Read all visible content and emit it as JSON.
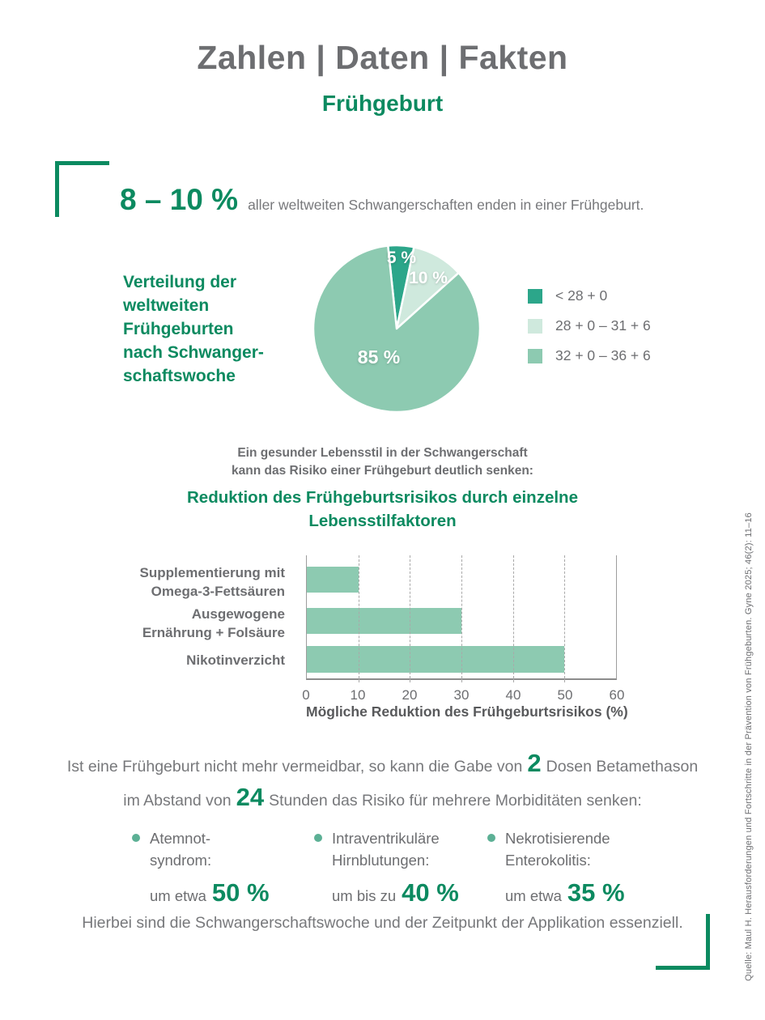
{
  "header": {
    "title": "Zahlen | Daten | Fakten",
    "subtitle": "Frühgeburt"
  },
  "colors": {
    "accent_green": "#0c8a60",
    "title_gray": "#6d6e71",
    "body_gray": "#77787b",
    "pie_dark": "#2ca68a",
    "pie_light": "#cfe9dd",
    "pie_medium": "#8dcab1",
    "bullet_green": "#5cb095"
  },
  "stat_intro": {
    "value": "8 – 10 %",
    "text": "aller weltweiten Schwangerschaften enden in einer Frühgeburt."
  },
  "chart_data": [
    {
      "type": "pie",
      "title": "Verteilung der weltweiten Frühgeburten nach Schwangerschaftswoche",
      "title_lines": [
        "Verteilung der",
        "weltweiten",
        "Frühgeburten",
        "nach Schwanger-",
        "schaftswoche"
      ],
      "start_angle_deg": -6,
      "slices": [
        {
          "label": "< 28 + 0",
          "value": 5,
          "display": "5 %",
          "color": "#2ca68a"
        },
        {
          "label": "28 + 0 – 31 + 6",
          "value": 10,
          "display": "10 %",
          "color": "#cfe9dd"
        },
        {
          "label": "32 + 0 – 36 + 6",
          "value": 85,
          "display": "85 %",
          "color": "#8dcab1"
        }
      ],
      "legend_position": "right"
    },
    {
      "type": "bar",
      "orientation": "horizontal",
      "title": "Reduktion des Frühgeburtsrisikos durch einzelne Lebensstilfaktoren",
      "categories": [
        "Supplementierung mit Omega-3-Fettsäuren",
        "Ausgewogene Ernährung + Folsäure",
        "Nikotinverzicht"
      ],
      "cat_lines": [
        [
          "Supplementierung mit",
          "Omega-3-Fettsäuren"
        ],
        [
          "Ausgewogene",
          "Ernährung + Folsäure"
        ],
        [
          "Nikotinverzicht",
          ""
        ]
      ],
      "values": [
        10,
        30,
        50
      ],
      "xlabel": "Mögliche Reduktion des Frühgeburtsrisikos (%)",
      "xlim": [
        0,
        60
      ],
      "xticks": [
        0,
        10,
        20,
        30,
        40,
        50,
        60
      ],
      "grid": "dashed-vertical",
      "bar_color": "#8dcab1"
    }
  ],
  "lifestyle_intro": {
    "line1": "Ein gesunder Lebensstil in der Schwangerschaft",
    "line2": "kann das Risiko einer Frühgeburt deutlich senken:",
    "heading_line1": "Reduktion des Frühgeburtsrisikos durch einzelne",
    "heading_line2": "Lebensstilfaktoren"
  },
  "betamethason": {
    "part1": "Ist eine Frühgeburt nicht mehr vermeidbar, so kann die Gabe von",
    "big1": "2",
    "part2": "Dosen Betamethason",
    "part3": "im Abstand von",
    "big2": "24",
    "part4": "Stunden das Risiko für mehrere Morbiditäten senken:"
  },
  "morbidities": [
    {
      "name_line1": "Atemnot-",
      "name_line2": "syndrom:",
      "prefix": "um etwa",
      "value": "50 %"
    },
    {
      "name_line1": "Intraventrikuläre",
      "name_line2": "Hirnblutungen:",
      "prefix": "um bis zu",
      "value": "40 %"
    },
    {
      "name_line1": "Nekrotisierende",
      "name_line2": "Enterokolitis:",
      "prefix": "um etwa",
      "value": "35 %"
    }
  ],
  "footer_note": "Hierbei sind die Schwangerschaftswoche und der Zeitpunkt der Applikation essenziell.",
  "source": "Quelle: Maul H. Herausforderungen und Fortschritte in der Prävention von Frühgeburten. Gyne 2025; 46(2): 11–16"
}
